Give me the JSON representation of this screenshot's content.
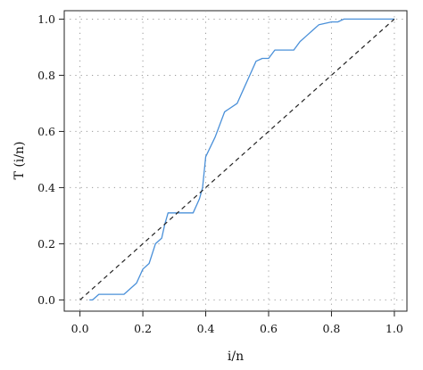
{
  "chart_data": {
    "type": "line",
    "xlabel": "i/n",
    "ylabel": "T (i/n)",
    "xlim": [
      -0.05,
      1.04
    ],
    "ylim": [
      -0.04,
      1.03
    ],
    "grid": true,
    "x_ticks": [
      0.0,
      0.2,
      0.4,
      0.6,
      0.8,
      1.0
    ],
    "x_tick_labels": [
      "0.0",
      "0.2",
      "0.4",
      "0.6",
      "0.8",
      "1.0"
    ],
    "y_ticks": [
      0.0,
      0.2,
      0.4,
      0.6,
      0.8,
      1.0
    ],
    "y_tick_labels": [
      "0.0",
      "0.2",
      "0.4",
      "0.6",
      "0.8",
      "1.0"
    ],
    "series": [
      {
        "style": "solid",
        "color": "#4a90d9",
        "x": [
          0.03,
          0.04,
          0.06,
          0.14,
          0.18,
          0.2,
          0.22,
          0.24,
          0.26,
          0.27,
          0.28,
          0.29,
          0.36,
          0.38,
          0.39,
          0.4,
          0.43,
          0.46,
          0.5,
          0.52,
          0.54,
          0.56,
          0.58,
          0.6,
          0.62,
          0.65,
          0.68,
          0.7,
          0.72,
          0.74,
          0.76,
          0.8,
          0.82,
          0.84,
          0.86,
          0.9,
          0.94,
          1.0
        ],
        "y": [
          0.0,
          0.0,
          0.02,
          0.02,
          0.06,
          0.11,
          0.13,
          0.2,
          0.22,
          0.27,
          0.31,
          0.31,
          0.31,
          0.36,
          0.4,
          0.51,
          0.58,
          0.67,
          0.7,
          0.75,
          0.8,
          0.85,
          0.86,
          0.86,
          0.89,
          0.89,
          0.89,
          0.92,
          0.94,
          0.96,
          0.98,
          0.99,
          0.99,
          1.0,
          1.0,
          1.0,
          1.0,
          1.0
        ]
      },
      {
        "style": "dashed",
        "color": "#222222",
        "x": [
          0.0,
          1.0
        ],
        "y": [
          0.0,
          1.0
        ]
      }
    ]
  }
}
